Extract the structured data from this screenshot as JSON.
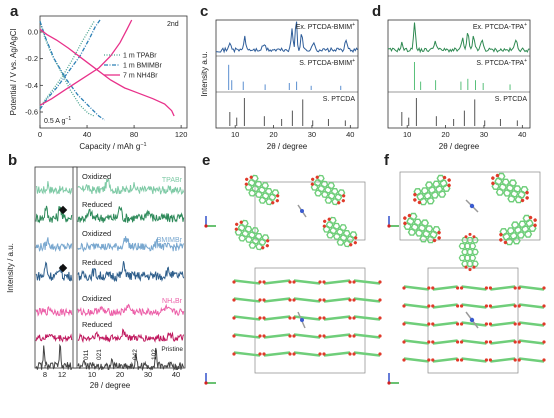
{
  "panels": {
    "a": {
      "label": "a",
      "tag": "2nd",
      "ylabel": "Potential / V vs. Ag/AgCl",
      "xlabel": "Capacity / mAh g",
      "xlabel_sup": "−1",
      "rate": "0.5 A g",
      "rate_sup": "−1",
      "xticks": [
        "0",
        "40",
        "80",
        "120"
      ],
      "yticks": [
        "0.0",
        "-0.2",
        "-0.4",
        "-0.6"
      ]
    },
    "b": {
      "label": "b",
      "ylabel": "Intensity / a.u.",
      "xlabel": "2θ / degree",
      "xticks_left": [
        "8",
        "12"
      ],
      "xticks_right": [
        "10",
        "20",
        "30",
        "40"
      ],
      "states": {
        "ox": "Oxidized",
        "red": "Reduced",
        "pristine": "Pristine"
      },
      "groups": [
        "TPABr",
        "BMIMBr",
        "NH4Br"
      ],
      "miller": [
        "011",
        "021",
        "042",
        "102"
      ]
    },
    "c": {
      "label": "c",
      "ylabel": "Intensity  a.u.",
      "xlabel": "2θ / degree",
      "xticks": [
        "10",
        "20",
        "30",
        "40"
      ],
      "traces": [
        "Ex. PTCDA-BMIM",
        "S. PTCDA-BMIM",
        "S. PTCDA"
      ],
      "sup": "+"
    },
    "d": {
      "label": "d",
      "xlabel": "2θ / degree",
      "xticks": [
        "10",
        "20",
        "30",
        "40"
      ],
      "traces": [
        "Ex. PTCDA-TPA",
        "S. PTCDA-TPA",
        "S. PTCDA"
      ],
      "sup": "+"
    },
    "e": {
      "label": "e"
    },
    "f": {
      "label": "f"
    }
  },
  "chart_data": [
    {
      "type": "line",
      "panel": "a",
      "xlabel": "Capacity / mAh g−1",
      "ylabel": "Potential / V vs. Ag/AgCl",
      "xlim": [
        0,
        125
      ],
      "ylim": [
        -0.72,
        0.12
      ],
      "legend_position": "right",
      "series": [
        {
          "name": "1 m TPABr",
          "color": "#4aa38f",
          "style": "dotted",
          "discharge": [
            [
              0,
              0.08
            ],
            [
              4,
              -0.04
            ],
            [
              10,
              -0.17
            ],
            [
              18,
              -0.3
            ],
            [
              26,
              -0.44
            ],
            [
              34,
              -0.55
            ],
            [
              41,
              -0.61
            ],
            [
              46,
              -0.63
            ]
          ],
          "charge": [
            [
              0,
              -0.56
            ],
            [
              5,
              -0.5
            ],
            [
              12,
              -0.42
            ],
            [
              20,
              -0.32
            ],
            [
              28,
              -0.2
            ],
            [
              36,
              -0.07
            ],
            [
              42,
              0.02
            ],
            [
              46,
              0.08
            ]
          ]
        },
        {
          "name": "1 m BMIMBr",
          "color": "#2b7fb5",
          "style": "dashdot",
          "discharge": [
            [
              0,
              0.08
            ],
            [
              5,
              -0.05
            ],
            [
              12,
              -0.2
            ],
            [
              22,
              -0.35
            ],
            [
              32,
              -0.47
            ],
            [
              42,
              -0.56
            ],
            [
              50,
              -0.63
            ],
            [
              55,
              -0.66
            ]
          ],
          "charge": [
            [
              0,
              -0.58
            ],
            [
              6,
              -0.5
            ],
            [
              14,
              -0.42
            ],
            [
              24,
              -0.3
            ],
            [
              34,
              -0.18
            ],
            [
              42,
              -0.05
            ],
            [
              47,
              0.04
            ],
            [
              51,
              0.09
            ]
          ]
        },
        {
          "name": "7 m NH4Br",
          "color": "#e8318a",
          "style": "solid",
          "discharge": [
            [
              0,
              0.02
            ],
            [
              6,
              -0.02
            ],
            [
              14,
              -0.06
            ],
            [
              24,
              -0.12
            ],
            [
              36,
              -0.2
            ],
            [
              48,
              -0.28
            ],
            [
              60,
              -0.36
            ],
            [
              72,
              -0.42
            ],
            [
              84,
              -0.46
            ],
            [
              96,
              -0.5
            ],
            [
              106,
              -0.54
            ],
            [
              112,
              -0.59
            ],
            [
              114,
              -0.63
            ]
          ],
          "charge": [
            [
              0,
              -0.55
            ],
            [
              10,
              -0.5
            ],
            [
              22,
              -0.43
            ],
            [
              36,
              -0.35
            ],
            [
              50,
              -0.27
            ],
            [
              60,
              -0.18
            ],
            [
              68,
              -0.08
            ],
            [
              74,
              0.02
            ],
            [
              78,
              0.09
            ]
          ]
        }
      ]
    },
    {
      "type": "line",
      "panel": "b",
      "xlabel": "2θ / degree",
      "ylabel": "Intensity / a.u.",
      "series": [
        {
          "name": "TPABr Oxidized",
          "color": "#7fcaa6"
        },
        {
          "name": "TPABr Reduced",
          "color": "#2e8a5a"
        },
        {
          "name": "BMIMBr Oxidized",
          "color": "#78a7cf"
        },
        {
          "name": "BMIMBr Reduced",
          "color": "#2f5f8c"
        },
        {
          "name": "NH4Br Oxidized",
          "color": "#ec5fa8"
        },
        {
          "name": "NH4Br Reduced",
          "color": "#c0195e"
        },
        {
          "name": "Pristine",
          "color": "#444444"
        }
      ]
    },
    {
      "type": "line",
      "panel": "c",
      "xlabel": "2θ / degree",
      "xlim": [
        5,
        42
      ],
      "series": [
        {
          "name": "Ex. PTCDA-BMIM+",
          "color": "#2e5d9a"
        },
        {
          "name": "S. PTCDA-BMIM+",
          "color": "#5b8fd0"
        },
        {
          "name": "S. PTCDA",
          "color": "#555555"
        }
      ]
    },
    {
      "type": "line",
      "panel": "d",
      "xlabel": "2θ / degree",
      "xlim": [
        5,
        42
      ],
      "series": [
        {
          "name": "Ex. PTCDA-TPA+",
          "color": "#2f8a52"
        },
        {
          "name": "S. PTCDA-TPA+",
          "color": "#58c07a"
        },
        {
          "name": "S. PTCDA",
          "color": "#555555"
        }
      ]
    }
  ],
  "colors": {
    "tpa_ox": "#7fcaa6",
    "tpa_red": "#2e8a5a",
    "bm_ox": "#78a7cf",
    "bm_red": "#2f5f8c",
    "nh_ox": "#ec5fa8",
    "nh_red": "#c0195e",
    "pristine": "#444444",
    "c_ex": "#2e5d9a",
    "c_sim": "#5b8fd0",
    "d_ex": "#2f8a52",
    "d_sim": "#58c07a",
    "mol_green": "#6fce7a",
    "mol_red": "#e03a2a"
  }
}
